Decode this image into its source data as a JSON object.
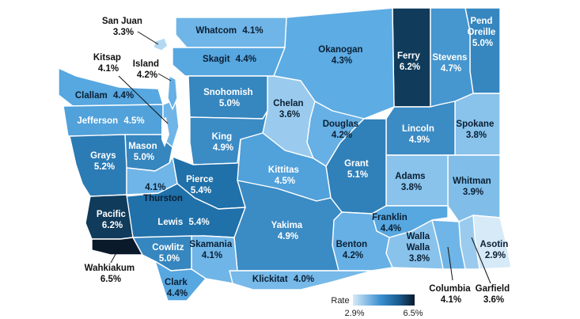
{
  "legend": {
    "title": "Rate",
    "min_label": "2.9%",
    "max_label": "6.5%",
    "min": 2.9,
    "max": 6.5,
    "color_low": "#d6eaf8",
    "color_high": "#0a1a2b"
  },
  "counties": {
    "whatcom": {
      "name": "Whatcom",
      "rate": 4.1,
      "rate_label": "4.1%"
    },
    "san_juan": {
      "name": "San Juan",
      "rate": 3.3,
      "rate_label": "3.3%"
    },
    "okanogan": {
      "name": "Okanogan",
      "rate": 4.3,
      "rate_label": "4.3%"
    },
    "ferry": {
      "name": "Ferry",
      "rate": 6.2,
      "rate_label": "6.2%"
    },
    "stevens": {
      "name": "Stevens",
      "rate": 4.7,
      "rate_label": "4.7%"
    },
    "pend_oreille": {
      "name": "Pend Oreille",
      "name_line1": "Pend",
      "name_line2": "Oreille",
      "rate": 5.0,
      "rate_label": "5.0%"
    },
    "skagit": {
      "name": "Skagit",
      "rate": 4.4,
      "rate_label": "4.4%"
    },
    "island": {
      "name": "Island",
      "rate": 4.2,
      "rate_label": "4.2%"
    },
    "kitsap": {
      "name": "Kitsap",
      "rate": 4.1,
      "rate_label": "4.1%"
    },
    "snohomish": {
      "name": "Snohomish",
      "rate": 5.0,
      "rate_label": "5.0%"
    },
    "clallam": {
      "name": "Clallam",
      "rate": 4.4,
      "rate_label": "4.4%"
    },
    "jefferson": {
      "name": "Jefferson",
      "rate": 4.5,
      "rate_label": "4.5%"
    },
    "chelan": {
      "name": "Chelan",
      "rate": 3.6,
      "rate_label": "3.6%"
    },
    "douglas": {
      "name": "Douglas",
      "rate": 4.2,
      "rate_label": "4.2%"
    },
    "lincoln": {
      "name": "Lincoln",
      "rate": 4.9,
      "rate_label": "4.9%"
    },
    "spokane": {
      "name": "Spokane",
      "rate": 3.8,
      "rate_label": "3.8%"
    },
    "king": {
      "name": "King",
      "rate": 4.9,
      "rate_label": "4.9%"
    },
    "grays_harbor": {
      "name": "Grays",
      "rate": 5.2,
      "rate_label": "5.2%"
    },
    "mason": {
      "name": "Mason",
      "rate": 5.0,
      "rate_label": "5.0%"
    },
    "kittitas": {
      "name": "Kittitas",
      "rate": 4.5,
      "rate_label": "4.5%"
    },
    "grant": {
      "name": "Grant",
      "rate": 5.1,
      "rate_label": "5.1%"
    },
    "adams": {
      "name": "Adams",
      "rate": 3.8,
      "rate_label": "3.8%"
    },
    "whitman": {
      "name": "Whitman",
      "rate": 3.9,
      "rate_label": "3.9%"
    },
    "thurston": {
      "name": "Thurston",
      "rate": 4.1,
      "rate_label": "4.1%"
    },
    "pierce": {
      "name": "Pierce",
      "rate": 5.4,
      "rate_label": "5.4%"
    },
    "pacific": {
      "name": "Pacific",
      "rate": 6.2,
      "rate_label": "6.2%"
    },
    "lewis": {
      "name": "Lewis",
      "rate": 5.4,
      "rate_label": "5.4%"
    },
    "yakima": {
      "name": "Yakima",
      "rate": 4.9,
      "rate_label": "4.9%"
    },
    "franklin": {
      "name": "Franklin",
      "rate": 4.4,
      "rate_label": "4.4%"
    },
    "benton": {
      "name": "Benton",
      "rate": 4.2,
      "rate_label": "4.2%"
    },
    "walla_walla": {
      "name": "Walla Walla",
      "name_line1": "Walla",
      "name_line2": "Walla",
      "rate": 3.8,
      "rate_label": "3.8%"
    },
    "asotin": {
      "name": "Asotin",
      "rate": 2.9,
      "rate_label": "2.9%"
    },
    "wahkiakum": {
      "name": "Wahkiakum",
      "rate": 6.5,
      "rate_label": "6.5%"
    },
    "cowlitz": {
      "name": "Cowlitz",
      "rate": 5.0,
      "rate_label": "5.0%"
    },
    "skamania": {
      "name": "Skamania",
      "rate": 4.1,
      "rate_label": "4.1%"
    },
    "clark": {
      "name": "Clark",
      "rate": 4.4,
      "rate_label": "4.4%"
    },
    "klickitat": {
      "name": "Klickitat",
      "rate": 4.0,
      "rate_label": "4.0%"
    },
    "columbia": {
      "name": "Columbia",
      "rate": 4.1,
      "rate_label": "4.1%"
    },
    "garfield": {
      "name": "Garfield",
      "rate": 3.6,
      "rate_label": "3.6%"
    }
  }
}
